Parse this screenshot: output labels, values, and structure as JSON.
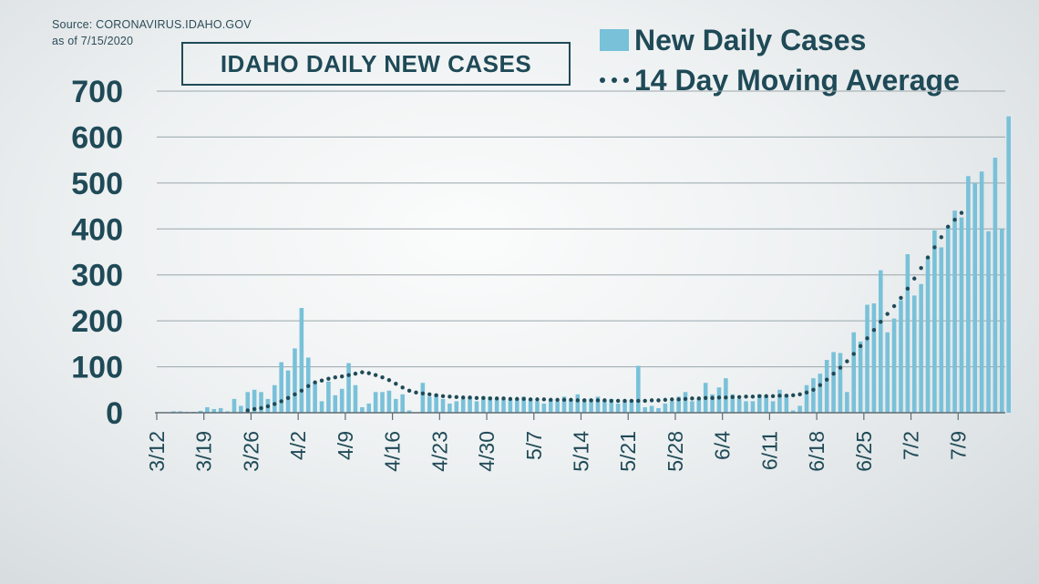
{
  "source": {
    "line1": "Source: CORONAVIRUS.IDAHO.GOV",
    "line2": "as of 7/15/2020"
  },
  "chart_data": {
    "type": "bar",
    "title": "IDAHO DAILY NEW CASES",
    "xlabel": "",
    "ylabel": "",
    "ylim": [
      0,
      700
    ],
    "yticks": [
      0,
      100,
      200,
      300,
      400,
      500,
      600,
      700
    ],
    "xtick_labels": [
      "3/12",
      "3/19",
      "3/26",
      "4/2",
      "4/9",
      "4/16",
      "4/23",
      "4/30",
      "5/7",
      "5/14",
      "5/21",
      "5/28",
      "6/4",
      "6/11",
      "6/18",
      "6/25",
      "7/2",
      "7/9"
    ],
    "x_start_date": "3/12",
    "x_end_date": "7/15",
    "grid": true,
    "legend_position": "top-right",
    "series": [
      {
        "name": "New Daily Cases",
        "kind": "bar",
        "color": "#79c1d9",
        "values": [
          0,
          1,
          3,
          3,
          2,
          2,
          4,
          12,
          8,
          10,
          3,
          30,
          15,
          45,
          50,
          45,
          30,
          60,
          110,
          92,
          140,
          228,
          120,
          65,
          25,
          68,
          38,
          52,
          108,
          60,
          12,
          20,
          45,
          45,
          48,
          30,
          40,
          5,
          0,
          65,
          35,
          40,
          30,
          20,
          25,
          30,
          35,
          25,
          35,
          35,
          30,
          30,
          28,
          30,
          35,
          30,
          25,
          20,
          30,
          25,
          35,
          28,
          40,
          30,
          30,
          35,
          28,
          30,
          20,
          25,
          28,
          102,
          12,
          15,
          10,
          20,
          25,
          35,
          45,
          25,
          30,
          65,
          40,
          55,
          75,
          40,
          30,
          25,
          25,
          40,
          35,
          25,
          50,
          40,
          5,
          15,
          60,
          75,
          85,
          115,
          132,
          130,
          45,
          175,
          155,
          235,
          238,
          310,
          175,
          205,
          245,
          345,
          255,
          280,
          338,
          397,
          360,
          405,
          440,
          425,
          515,
          500,
          525,
          395,
          555,
          400,
          645
        ]
      },
      {
        "name": "14 Day Moving Average",
        "kind": "dotted-line",
        "color": "#1f4a57",
        "x_start": "3/25",
        "values": [
          5,
          8,
          10,
          14,
          19,
          25,
          32,
          40,
          48,
          58,
          66,
          70,
          74,
          77,
          79,
          82,
          85,
          88,
          86,
          82,
          77,
          71,
          63,
          55,
          48,
          44,
          42,
          40,
          38,
          36,
          35,
          34,
          33,
          33,
          32,
          32,
          31,
          31,
          31,
          30,
          30,
          30,
          29,
          29,
          29,
          28,
          28,
          28,
          28,
          27,
          27,
          27,
          27,
          27,
          26,
          26,
          26,
          26,
          26,
          26,
          27,
          27,
          28,
          29,
          29,
          30,
          31,
          31,
          32,
          32,
          33,
          33,
          34,
          34,
          35,
          35,
          36,
          36,
          36,
          37,
          37,
          38,
          40,
          44,
          50,
          60,
          72,
          85,
          98,
          112,
          128,
          145,
          162,
          180,
          198,
          215,
          232,
          250,
          270,
          292,
          315,
          338,
          360,
          382,
          405,
          420,
          435
        ]
      }
    ]
  }
}
